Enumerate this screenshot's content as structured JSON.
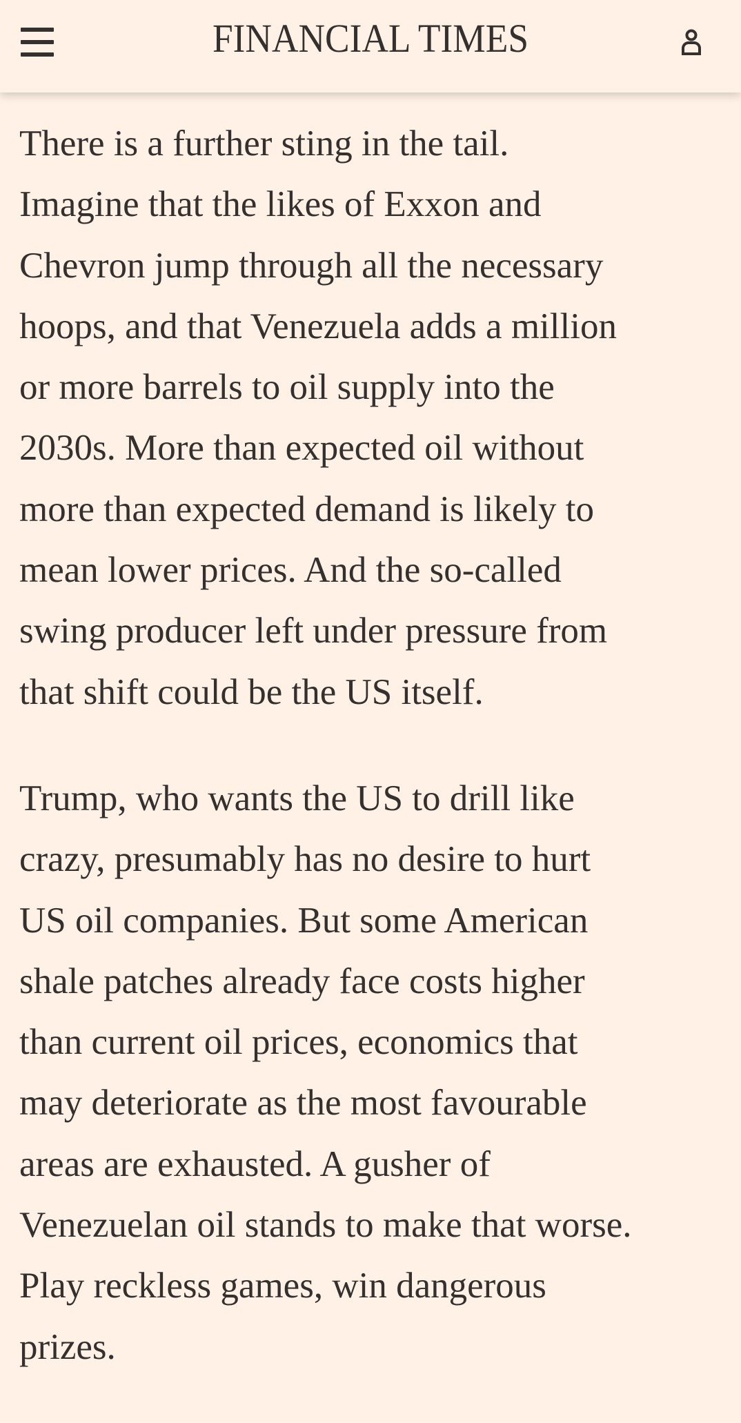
{
  "header": {
    "brand": "FINANCIAL TIMES",
    "menu_icon": "hamburger-menu-icon",
    "account_icon": "user-icon"
  },
  "article": {
    "paragraphs": [
      {
        "lines": [
          "There is a further sting in the tail.",
          "Imagine that the likes of Exxon and",
          "Chevron jump through all the necessary",
          "hoops, and that Venezuela adds a million",
          "or more barrels to oil supply into the",
          "2030s. More than expected oil without",
          "more than expected demand is likely to",
          "mean lower prices. And the so-called",
          "swing producer left under pressure from",
          "that shift could be the US itself."
        ]
      },
      {
        "lines": [
          "Trump, who wants the US to drill like",
          "crazy, presumably has no desire to hurt",
          "US oil companies. But some American",
          "shale patches already face costs higher",
          "than current oil prices, economics that",
          "may deteriorate as the most favourable",
          "areas are exhausted. A gusher of",
          "Venezuelan oil stands to make that worse.",
          "Play reckless games, win dangerous",
          "prizes."
        ]
      }
    ]
  }
}
